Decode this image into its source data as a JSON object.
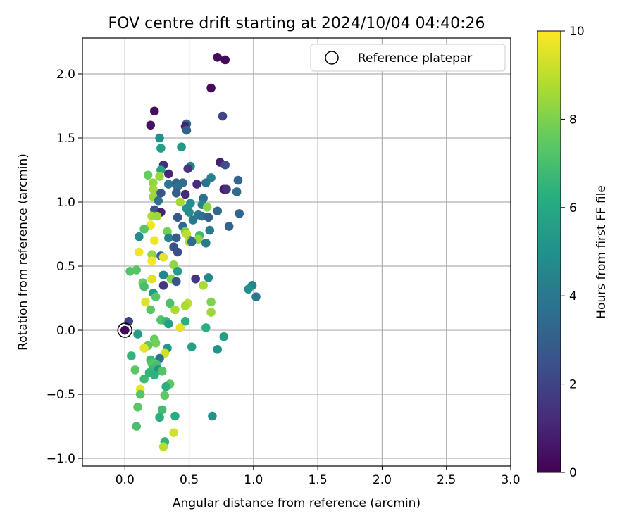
{
  "chart_data": {
    "type": "scatter",
    "title": "FOV centre drift starting at 2024/10/04 04:40:26",
    "xlabel": "Angular distance from reference (arcmin)",
    "ylabel": "Rotation from reference (arcmin)",
    "xlim": [
      -0.33,
      3.0
    ],
    "ylim": [
      -1.06,
      2.28
    ],
    "xticks": [
      0.0,
      0.5,
      1.0,
      1.5,
      2.0,
      2.5,
      3.0
    ],
    "xtick_labels": [
      "0.0",
      "0.5",
      "1.0",
      "1.5",
      "2.0",
      "2.5",
      "3.0"
    ],
    "yticks": [
      -1.0,
      -0.5,
      0.0,
      0.5,
      1.0,
      1.5,
      2.0
    ],
    "ytick_labels": [
      "−1.0",
      "−0.5",
      "0.0",
      "0.5",
      "1.0",
      "1.5",
      "2.0"
    ],
    "grid": true,
    "legend": {
      "entries": [
        "Reference platepar"
      ],
      "placement": "top-right"
    },
    "reference_point": {
      "x": 0.0,
      "y": 0.0
    },
    "colorbar": {
      "label": "Hours from first FF file",
      "min": 0,
      "max": 10,
      "ticks": [
        0,
        2,
        4,
        6,
        8,
        10
      ],
      "tick_labels": [
        "0",
        "2",
        "4",
        "6",
        "8",
        "10"
      ],
      "colormap": "viridis"
    },
    "points": [
      {
        "x": 0.72,
        "y": 2.13,
        "h": 0.3
      },
      {
        "x": 0.78,
        "y": 2.11,
        "h": 0.2
      },
      {
        "x": 0.67,
        "y": 1.89,
        "h": 0.3
      },
      {
        "x": 0.23,
        "y": 1.71,
        "h": 0.4
      },
      {
        "x": 0.76,
        "y": 1.67,
        "h": 2.0
      },
      {
        "x": 0.2,
        "y": 1.6,
        "h": 0.5
      },
      {
        "x": 0.48,
        "y": 1.61,
        "h": 3.3
      },
      {
        "x": 0.47,
        "y": 1.59,
        "h": 1.0
      },
      {
        "x": 0.48,
        "y": 1.56,
        "h": 3.1
      },
      {
        "x": 0.27,
        "y": 1.5,
        "h": 5.0
      },
      {
        "x": 0.28,
        "y": 1.42,
        "h": 5.6
      },
      {
        "x": 0.44,
        "y": 1.43,
        "h": 5.4
      },
      {
        "x": 0.74,
        "y": 1.31,
        "h": 0.9
      },
      {
        "x": 0.78,
        "y": 1.29,
        "h": 2.4
      },
      {
        "x": 0.3,
        "y": 1.29,
        "h": 1.3
      },
      {
        "x": 0.51,
        "y": 1.28,
        "h": 4.3
      },
      {
        "x": 0.49,
        "y": 1.26,
        "h": 1.5
      },
      {
        "x": 0.28,
        "y": 1.25,
        "h": 5.9
      },
      {
        "x": 0.18,
        "y": 1.21,
        "h": 7.6
      },
      {
        "x": 0.34,
        "y": 1.22,
        "h": 1.1
      },
      {
        "x": 0.67,
        "y": 1.19,
        "h": 4.3
      },
      {
        "x": 0.27,
        "y": 1.2,
        "h": 8.4
      },
      {
        "x": 0.88,
        "y": 1.17,
        "h": 3.2
      },
      {
        "x": 0.22,
        "y": 1.15,
        "h": 8.3
      },
      {
        "x": 0.34,
        "y": 1.14,
        "h": 3.9
      },
      {
        "x": 0.4,
        "y": 1.15,
        "h": 3.0
      },
      {
        "x": 0.45,
        "y": 1.15,
        "h": 3.5
      },
      {
        "x": 0.56,
        "y": 1.14,
        "h": 1.3
      },
      {
        "x": 0.63,
        "y": 1.15,
        "h": 3.8
      },
      {
        "x": 0.41,
        "y": 1.12,
        "h": 3.6
      },
      {
        "x": 0.22,
        "y": 1.1,
        "h": 8.5
      },
      {
        "x": 0.77,
        "y": 1.1,
        "h": 0.7
      },
      {
        "x": 0.79,
        "y": 1.1,
        "h": 1.4
      },
      {
        "x": 0.87,
        "y": 1.08,
        "h": 3.5
      },
      {
        "x": 0.28,
        "y": 1.07,
        "h": 2.6
      },
      {
        "x": 0.4,
        "y": 1.07,
        "h": 2.9
      },
      {
        "x": 0.47,
        "y": 1.06,
        "h": 1.2
      },
      {
        "x": 0.22,
        "y": 1.04,
        "h": 8.5
      },
      {
        "x": 0.61,
        "y": 1.03,
        "h": 3.6
      },
      {
        "x": 0.26,
        "y": 1.01,
        "h": 3.7
      },
      {
        "x": 0.43,
        "y": 1.0,
        "h": 8.6
      },
      {
        "x": 0.51,
        "y": 0.99,
        "h": 4.9
      },
      {
        "x": 0.6,
        "y": 0.98,
        "h": 4.4
      },
      {
        "x": 0.64,
        "y": 0.96,
        "h": 8.2
      },
      {
        "x": 0.23,
        "y": 0.94,
        "h": 2.6
      },
      {
        "x": 0.48,
        "y": 0.95,
        "h": 5.0
      },
      {
        "x": 0.28,
        "y": 0.92,
        "h": 0.9
      },
      {
        "x": 0.5,
        "y": 0.92,
        "h": 4.8
      },
      {
        "x": 0.72,
        "y": 0.93,
        "h": 3.4
      },
      {
        "x": 0.89,
        "y": 0.91,
        "h": 3.3
      },
      {
        "x": 0.21,
        "y": 0.89,
        "h": 8.7
      },
      {
        "x": 0.25,
        "y": 0.89,
        "h": 8.5
      },
      {
        "x": 0.41,
        "y": 0.88,
        "h": 2.7
      },
      {
        "x": 0.57,
        "y": 0.9,
        "h": 4.0
      },
      {
        "x": 0.6,
        "y": 0.89,
        "h": 3.7
      },
      {
        "x": 0.65,
        "y": 0.88,
        "h": 3.1
      },
      {
        "x": 0.53,
        "y": 0.86,
        "h": 4.0
      },
      {
        "x": 0.2,
        "y": 0.82,
        "h": 9.8
      },
      {
        "x": 0.45,
        "y": 0.81,
        "h": 3.3
      },
      {
        "x": 0.81,
        "y": 0.81,
        "h": 3.2
      },
      {
        "x": 0.15,
        "y": 0.79,
        "h": 7.3
      },
      {
        "x": 0.33,
        "y": 0.77,
        "h": 7.8
      },
      {
        "x": 0.47,
        "y": 0.77,
        "h": 7.9
      },
      {
        "x": 0.66,
        "y": 0.78,
        "h": 4.0
      },
      {
        "x": 0.48,
        "y": 0.75,
        "h": 9.0
      },
      {
        "x": 0.58,
        "y": 0.74,
        "h": 6.7
      },
      {
        "x": 0.11,
        "y": 0.73,
        "h": 4.8
      },
      {
        "x": 0.34,
        "y": 0.72,
        "h": 4.3
      },
      {
        "x": 0.4,
        "y": 0.72,
        "h": 2.9
      },
      {
        "x": 0.57,
        "y": 0.71,
        "h": 8.3
      },
      {
        "x": 0.51,
        "y": 0.7,
        "h": 2.9
      },
      {
        "x": 0.5,
        "y": 0.69,
        "h": 9.0
      },
      {
        "x": 0.52,
        "y": 0.69,
        "h": 3.5
      },
      {
        "x": 0.23,
        "y": 0.7,
        "h": 9.8
      },
      {
        "x": 0.63,
        "y": 0.68,
        "h": 4.2
      },
      {
        "x": 0.38,
        "y": 0.65,
        "h": 2.5
      },
      {
        "x": 0.41,
        "y": 0.61,
        "h": 2.4
      },
      {
        "x": 0.11,
        "y": 0.61,
        "h": 9.8
      },
      {
        "x": 0.21,
        "y": 0.59,
        "h": 8.4
      },
      {
        "x": 0.28,
        "y": 0.58,
        "h": 3.4
      },
      {
        "x": 0.3,
        "y": 0.57,
        "h": 9.6
      },
      {
        "x": 0.21,
        "y": 0.54,
        "h": 9.9
      },
      {
        "x": 0.38,
        "y": 0.51,
        "h": 8.3
      },
      {
        "x": 0.04,
        "y": 0.46,
        "h": 7.2
      },
      {
        "x": 0.09,
        "y": 0.47,
        "h": 7.3
      },
      {
        "x": 0.41,
        "y": 0.46,
        "h": 5.5
      },
      {
        "x": 0.3,
        "y": 0.43,
        "h": 4.6
      },
      {
        "x": 0.65,
        "y": 0.41,
        "h": 4.6
      },
      {
        "x": 0.21,
        "y": 0.4,
        "h": 9.5
      },
      {
        "x": 0.36,
        "y": 0.4,
        "h": 8.1
      },
      {
        "x": 0.55,
        "y": 0.4,
        "h": 1.6
      },
      {
        "x": 0.4,
        "y": 0.38,
        "h": 2.6
      },
      {
        "x": 0.14,
        "y": 0.37,
        "h": 7.6
      },
      {
        "x": 0.3,
        "y": 0.35,
        "h": 1.6
      },
      {
        "x": 0.15,
        "y": 0.34,
        "h": 7.0
      },
      {
        "x": 0.61,
        "y": 0.35,
        "h": 8.7
      },
      {
        "x": 0.99,
        "y": 0.35,
        "h": 4.5
      },
      {
        "x": 0.96,
        "y": 0.32,
        "h": 5.0
      },
      {
        "x": 0.22,
        "y": 0.29,
        "h": 5.4
      },
      {
        "x": 0.24,
        "y": 0.26,
        "h": 7.3
      },
      {
        "x": 1.02,
        "y": 0.26,
        "h": 4.0
      },
      {
        "x": 0.16,
        "y": 0.22,
        "h": 9.5
      },
      {
        "x": 0.35,
        "y": 0.21,
        "h": 7.1
      },
      {
        "x": 0.49,
        "y": 0.21,
        "h": 9.0
      },
      {
        "x": 0.67,
        "y": 0.22,
        "h": 8.0
      },
      {
        "x": 0.47,
        "y": 0.19,
        "h": 8.7
      },
      {
        "x": 0.2,
        "y": 0.16,
        "h": 7.4
      },
      {
        "x": 0.39,
        "y": 0.16,
        "h": 8.7
      },
      {
        "x": 0.67,
        "y": 0.14,
        "h": 8.5
      },
      {
        "x": 0.28,
        "y": 0.08,
        "h": 7.2
      },
      {
        "x": 0.32,
        "y": 0.07,
        "h": 6.7
      },
      {
        "x": 0.47,
        "y": 0.07,
        "h": 6.3
      },
      {
        "x": 0.34,
        "y": 0.05,
        "h": 5.6
      },
      {
        "x": 0.43,
        "y": 0.02,
        "h": 9.6
      },
      {
        "x": 0.63,
        "y": 0.02,
        "h": 6.3
      },
      {
        "x": 0.03,
        "y": 0.07,
        "h": 1.9
      },
      {
        "x": 0.0,
        "y": 0.0,
        "h": 0.2
      },
      {
        "x": 0.1,
        "y": -0.03,
        "h": 5.5
      },
      {
        "x": 0.77,
        "y": -0.05,
        "h": 5.6
      },
      {
        "x": 0.23,
        "y": -0.07,
        "h": 7.6
      },
      {
        "x": 0.24,
        "y": -0.1,
        "h": 7.8
      },
      {
        "x": 0.18,
        "y": -0.12,
        "h": 7.5
      },
      {
        "x": 0.15,
        "y": -0.14,
        "h": 9.6
      },
      {
        "x": 0.33,
        "y": -0.14,
        "h": 5.2
      },
      {
        "x": 0.52,
        "y": -0.13,
        "h": 5.7
      },
      {
        "x": 0.72,
        "y": -0.15,
        "h": 5.1
      },
      {
        "x": 0.31,
        "y": -0.18,
        "h": 9.3
      },
      {
        "x": 0.05,
        "y": -0.2,
        "h": 6.5
      },
      {
        "x": 0.27,
        "y": -0.22,
        "h": 3.7
      },
      {
        "x": 0.2,
        "y": -0.23,
        "h": 6.7
      },
      {
        "x": 0.21,
        "y": -0.26,
        "h": 7.3
      },
      {
        "x": 0.25,
        "y": -0.27,
        "h": 7.0
      },
      {
        "x": 0.22,
        "y": -0.3,
        "h": 6.8
      },
      {
        "x": 0.08,
        "y": -0.31,
        "h": 7.4
      },
      {
        "x": 0.26,
        "y": -0.31,
        "h": 5.0
      },
      {
        "x": 0.29,
        "y": -0.32,
        "h": 7.2
      },
      {
        "x": 0.19,
        "y": -0.33,
        "h": 6.5
      },
      {
        "x": 0.23,
        "y": -0.35,
        "h": 6.4
      },
      {
        "x": 0.15,
        "y": -0.38,
        "h": 6.8
      },
      {
        "x": 0.35,
        "y": -0.42,
        "h": 7.4
      },
      {
        "x": 0.32,
        "y": -0.44,
        "h": 6.3
      },
      {
        "x": 0.12,
        "y": -0.46,
        "h": 9.7
      },
      {
        "x": 0.12,
        "y": -0.5,
        "h": 7.3
      },
      {
        "x": 0.31,
        "y": -0.51,
        "h": 7.5
      },
      {
        "x": 0.1,
        "y": -0.6,
        "h": 7.4
      },
      {
        "x": 0.29,
        "y": -0.62,
        "h": 6.9
      },
      {
        "x": 0.27,
        "y": -0.68,
        "h": 6.3
      },
      {
        "x": 0.39,
        "y": -0.67,
        "h": 6.2
      },
      {
        "x": 0.68,
        "y": -0.67,
        "h": 5.1
      },
      {
        "x": 0.09,
        "y": -0.75,
        "h": 7.0
      },
      {
        "x": 0.38,
        "y": -0.8,
        "h": 9.3
      },
      {
        "x": 0.31,
        "y": -0.87,
        "h": 6.5
      },
      {
        "x": 0.3,
        "y": -0.91,
        "h": 8.9
      }
    ]
  }
}
